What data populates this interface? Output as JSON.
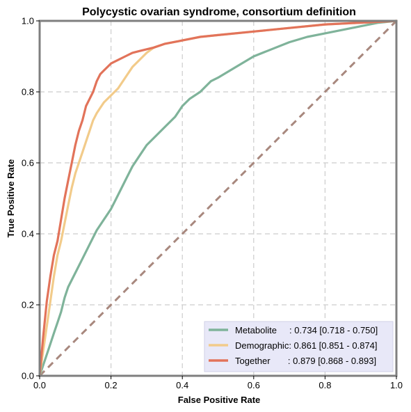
{
  "chart_data": {
    "type": "line",
    "title": "Polycystic ovarian syndrome, consortium definition",
    "xlabel": "False Positive Rate",
    "ylabel": "True Positive Rate",
    "xlim": [
      0,
      1
    ],
    "ylim": [
      0,
      1
    ],
    "xticks": [
      0.0,
      0.2,
      0.4,
      0.6,
      0.8,
      1.0
    ],
    "yticks": [
      0.0,
      0.2,
      0.4,
      0.6,
      0.8,
      1.0
    ],
    "xtick_labels": [
      "0.0",
      "0.2",
      "0.4",
      "0.6",
      "0.8",
      "1.0"
    ],
    "ytick_labels": [
      "0.0",
      "0.2",
      "0.4",
      "0.6",
      "0.8",
      "1.0"
    ],
    "grid": true,
    "legend_position": "bottom-right",
    "diagonal": {
      "x": [
        0,
        1
      ],
      "y": [
        0,
        1
      ],
      "color": "#a8887e",
      "style": "dashed"
    },
    "series": [
      {
        "name": "Metabolite",
        "legend_label": "Metabolite     : 0.734 [0.718 - 0.750]",
        "color": "#7fb39a",
        "x": [
          0,
          0.01,
          0.02,
          0.03,
          0.04,
          0.05,
          0.06,
          0.07,
          0.08,
          0.1,
          0.12,
          0.14,
          0.16,
          0.18,
          0.2,
          0.22,
          0.24,
          0.26,
          0.28,
          0.3,
          0.32,
          0.35,
          0.38,
          0.4,
          0.42,
          0.45,
          0.48,
          0.5,
          0.55,
          0.6,
          0.65,
          0.7,
          0.75,
          0.8,
          0.85,
          0.9,
          0.95,
          1.0
        ],
        "y": [
          0,
          0.03,
          0.06,
          0.09,
          0.12,
          0.15,
          0.18,
          0.22,
          0.25,
          0.29,
          0.33,
          0.37,
          0.41,
          0.44,
          0.47,
          0.51,
          0.55,
          0.59,
          0.62,
          0.65,
          0.67,
          0.7,
          0.73,
          0.76,
          0.78,
          0.8,
          0.83,
          0.84,
          0.87,
          0.9,
          0.92,
          0.94,
          0.955,
          0.965,
          0.975,
          0.985,
          0.995,
          1.0
        ]
      },
      {
        "name": "Demographic",
        "legend_label": "Demographic: 0.861 [0.851 - 0.874]",
        "color": "#f2cb8a",
        "x": [
          0,
          0.01,
          0.02,
          0.03,
          0.04,
          0.05,
          0.06,
          0.07,
          0.08,
          0.09,
          0.1,
          0.11,
          0.12,
          0.13,
          0.14,
          0.15,
          0.16,
          0.17,
          0.18,
          0.2,
          0.22,
          0.24,
          0.26,
          0.28,
          0.3,
          0.32,
          0.35,
          0.4,
          0.45,
          0.5,
          0.6,
          0.7,
          0.8,
          0.9,
          1.0
        ],
        "y": [
          0,
          0.07,
          0.14,
          0.21,
          0.28,
          0.34,
          0.38,
          0.43,
          0.48,
          0.53,
          0.57,
          0.6,
          0.63,
          0.66,
          0.69,
          0.72,
          0.74,
          0.755,
          0.77,
          0.79,
          0.81,
          0.84,
          0.87,
          0.89,
          0.91,
          0.925,
          0.935,
          0.945,
          0.955,
          0.96,
          0.97,
          0.98,
          0.99,
          0.995,
          1.0
        ]
      },
      {
        "name": "Together",
        "legend_label": "Together       : 0.879 [0.868 - 0.893]",
        "color": "#e2735a",
        "x": [
          0,
          0.01,
          0.02,
          0.03,
          0.04,
          0.05,
          0.06,
          0.07,
          0.08,
          0.09,
          0.1,
          0.11,
          0.12,
          0.13,
          0.14,
          0.15,
          0.16,
          0.17,
          0.18,
          0.2,
          0.22,
          0.24,
          0.26,
          0.28,
          0.3,
          0.32,
          0.35,
          0.4,
          0.45,
          0.5,
          0.6,
          0.7,
          0.8,
          0.9,
          1.0
        ],
        "y": [
          0,
          0.11,
          0.21,
          0.28,
          0.34,
          0.38,
          0.44,
          0.5,
          0.55,
          0.6,
          0.65,
          0.69,
          0.72,
          0.76,
          0.78,
          0.8,
          0.83,
          0.85,
          0.86,
          0.88,
          0.89,
          0.9,
          0.91,
          0.915,
          0.92,
          0.925,
          0.935,
          0.945,
          0.955,
          0.96,
          0.97,
          0.98,
          0.99,
          0.995,
          1.0
        ]
      }
    ]
  }
}
